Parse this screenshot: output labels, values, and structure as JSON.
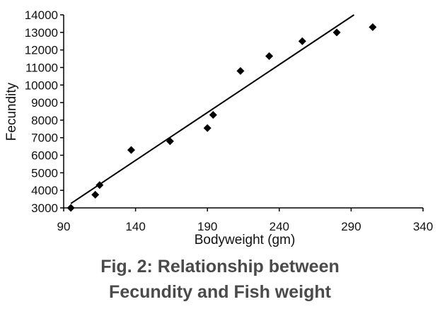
{
  "chart_data": {
    "type": "scatter",
    "title": "",
    "xlabel": "Bodyweight (gm)",
    "ylabel": "Fecundity",
    "xlim": [
      90,
      340
    ],
    "ylim": [
      3000,
      14000
    ],
    "xticks": [
      90,
      140,
      190,
      240,
      290,
      340
    ],
    "yticks": [
      3000,
      4000,
      5000,
      6000,
      7000,
      8000,
      9000,
      10000,
      11000,
      12000,
      13000,
      14000
    ],
    "grid": false,
    "legend": "none",
    "marker_color": "#000000",
    "series": [
      {
        "points": [
          {
            "x": 95,
            "y": 3000
          },
          {
            "x": 112,
            "y": 3750
          },
          {
            "x": 115,
            "y": 4300
          },
          {
            "x": 137,
            "y": 6300
          },
          {
            "x": 164,
            "y": 6800
          },
          {
            "x": 190,
            "y": 7550
          },
          {
            "x": 194,
            "y": 8300
          },
          {
            "x": 213,
            "y": 10800
          },
          {
            "x": 233,
            "y": 11650
          },
          {
            "x": 256,
            "y": 12500
          },
          {
            "x": 280,
            "y": 13000
          },
          {
            "x": 305,
            "y": 13300
          }
        ]
      }
    ],
    "trendline": {
      "type": "linear",
      "x": [
        95,
        292
      ],
      "y": [
        3250,
        14000
      ]
    }
  },
  "caption": {
    "line1": "Fig. 2: Relationship between",
    "line2": "Fecundity and Fish weight"
  }
}
